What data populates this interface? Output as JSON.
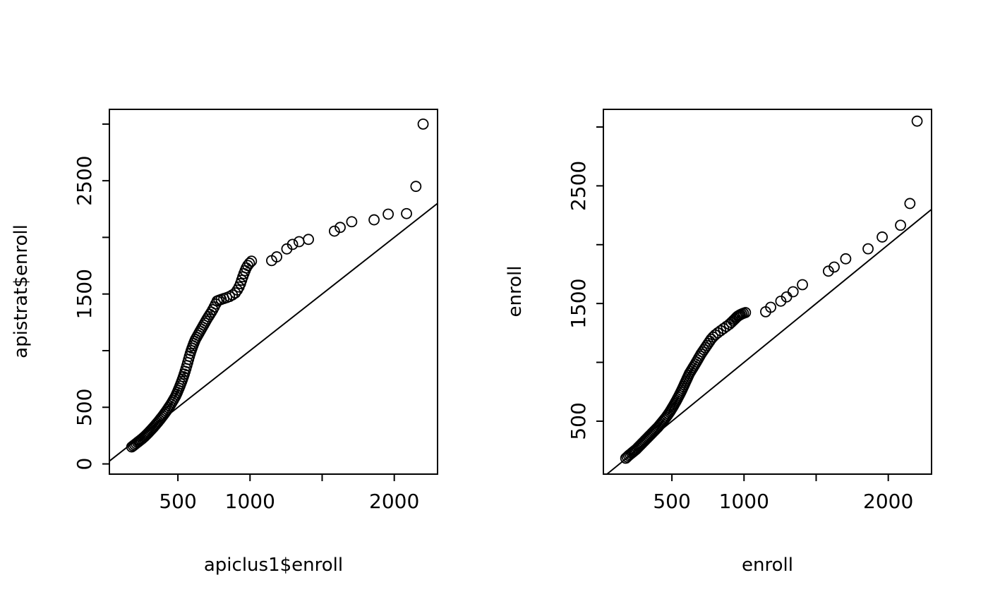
{
  "colors": {
    "foreground": "#000000",
    "background": "#ffffff"
  },
  "chart_data": [
    {
      "type": "scatter",
      "subtype": "qqplot",
      "title": "",
      "xlabel": "apiclus1$enroll",
      "ylabel": "apistrat$enroll",
      "xlim": [
        25,
        2300
      ],
      "ylim": [
        -90,
        3130
      ],
      "grid": false,
      "legend": "none",
      "marker": {
        "shape": "open-circle",
        "radius": 7
      },
      "reference_line": {
        "intercept": 0,
        "slope": 1
      },
      "xticks": [
        {
          "value": 500,
          "label": "500"
        },
        {
          "value": 1000,
          "label": "1000"
        },
        {
          "value": 1500,
          "label": ""
        },
        {
          "value": 2000,
          "label": "2000"
        }
      ],
      "yticks": [
        {
          "value": 0,
          "label": "0"
        },
        {
          "value": 500,
          "label": "500"
        },
        {
          "value": 1000,
          "label": ""
        },
        {
          "value": 1500,
          "label": "1500"
        },
        {
          "value": 2000,
          "label": ""
        },
        {
          "value": 2500,
          "label": "2500"
        },
        {
          "value": 3000,
          "label": ""
        }
      ],
      "points": [
        [
          180,
          150
        ],
        [
          190,
          160
        ],
        [
          200,
          170
        ],
        [
          210,
          180
        ],
        [
          220,
          190
        ],
        [
          228,
          198
        ],
        [
          236,
          206
        ],
        [
          244,
          214
        ],
        [
          252,
          222
        ],
        [
          260,
          231
        ],
        [
          268,
          240
        ],
        [
          276,
          250
        ],
        [
          284,
          260
        ],
        [
          292,
          270
        ],
        [
          300,
          281
        ],
        [
          308,
          292
        ],
        [
          316,
          303
        ],
        [
          324,
          314
        ],
        [
          332,
          325
        ],
        [
          340,
          337
        ],
        [
          348,
          349
        ],
        [
          356,
          361
        ],
        [
          364,
          373
        ],
        [
          372,
          386
        ],
        [
          380,
          399
        ],
        [
          388,
          412
        ],
        [
          396,
          425
        ],
        [
          404,
          439
        ],
        [
          412,
          453
        ],
        [
          420,
          467
        ],
        [
          428,
          482
        ],
        [
          436,
          497
        ],
        [
          444,
          512
        ],
        [
          452,
          528
        ],
        [
          460,
          545
        ],
        [
          468,
          562
        ],
        [
          476,
          580
        ],
        [
          484,
          598
        ],
        [
          490,
          615
        ],
        [
          496,
          632
        ],
        [
          502,
          650
        ],
        [
          508,
          668
        ],
        [
          514,
          687
        ],
        [
          520,
          707
        ],
        [
          526,
          727
        ],
        [
          532,
          748
        ],
        [
          538,
          770
        ],
        [
          544,
          793
        ],
        [
          550,
          817
        ],
        [
          556,
          842
        ],
        [
          562,
          868
        ],
        [
          568,
          895
        ],
        [
          574,
          923
        ],
        [
          580,
          950
        ],
        [
          586,
          976
        ],
        [
          592,
          1000
        ],
        [
          598,
          1022
        ],
        [
          604,
          1043
        ],
        [
          610,
          1063
        ],
        [
          616,
          1082
        ],
        [
          622,
          1100
        ],
        [
          630,
          1118
        ],
        [
          638,
          1136
        ],
        [
          646,
          1154
        ],
        [
          654,
          1172
        ],
        [
          662,
          1190
        ],
        [
          670,
          1208
        ],
        [
          678,
          1226
        ],
        [
          686,
          1244
        ],
        [
          694,
          1262
        ],
        [
          702,
          1280
        ],
        [
          712,
          1300
        ],
        [
          722,
          1320
        ],
        [
          732,
          1340
        ],
        [
          742,
          1362
        ],
        [
          752,
          1386
        ],
        [
          762,
          1412
        ],
        [
          772,
          1438
        ],
        [
          785,
          1445
        ],
        [
          800,
          1452
        ],
        [
          818,
          1460
        ],
        [
          838,
          1468
        ],
        [
          858,
          1478
        ],
        [
          878,
          1492
        ],
        [
          898,
          1510
        ],
        [
          912,
          1535
        ],
        [
          924,
          1562
        ],
        [
          934,
          1592
        ],
        [
          942,
          1622
        ],
        [
          950,
          1652
        ],
        [
          958,
          1680
        ],
        [
          966,
          1706
        ],
        [
          974,
          1730
        ],
        [
          984,
          1752
        ],
        [
          996,
          1772
        ],
        [
          1010,
          1790
        ],
        [
          1150,
          1795
        ],
        [
          1185,
          1828
        ],
        [
          1255,
          1898
        ],
        [
          1295,
          1938
        ],
        [
          1340,
          1962
        ],
        [
          1405,
          1982
        ],
        [
          1585,
          2055
        ],
        [
          1625,
          2088
        ],
        [
          1705,
          2138
        ],
        [
          1860,
          2155
        ],
        [
          1958,
          2205
        ],
        [
          2085,
          2210
        ],
        [
          2150,
          2450
        ],
        [
          2200,
          3000
        ]
      ]
    },
    {
      "type": "scatter",
      "subtype": "qqplot",
      "title": "",
      "xlabel": "enroll",
      "ylabel": "enroll",
      "xlim": [
        25,
        2300
      ],
      "ylim": [
        50,
        3150
      ],
      "grid": false,
      "legend": "none",
      "marker": {
        "shape": "open-circle",
        "radius": 7
      },
      "reference_line": {
        "intercept": 0,
        "slope": 1
      },
      "xticks": [
        {
          "value": 500,
          "label": "500"
        },
        {
          "value": 1000,
          "label": "1000"
        },
        {
          "value": 1500,
          "label": ""
        },
        {
          "value": 2000,
          "label": "2000"
        }
      ],
      "yticks": [
        {
          "value": 500,
          "label": "500"
        },
        {
          "value": 1000,
          "label": ""
        },
        {
          "value": 1500,
          "label": "1500"
        },
        {
          "value": 2000,
          "label": ""
        },
        {
          "value": 2500,
          "label": "2500"
        },
        {
          "value": 3000,
          "label": ""
        }
      ],
      "points": [
        [
          180,
          185
        ],
        [
          190,
          196
        ],
        [
          200,
          208
        ],
        [
          210,
          218
        ],
        [
          220,
          228
        ],
        [
          228,
          236
        ],
        [
          236,
          244
        ],
        [
          244,
          252
        ],
        [
          252,
          260
        ],
        [
          260,
          270
        ],
        [
          268,
          280
        ],
        [
          276,
          290
        ],
        [
          284,
          300
        ],
        [
          292,
          310
        ],
        [
          300,
          320
        ],
        [
          308,
          330
        ],
        [
          316,
          340
        ],
        [
          324,
          350
        ],
        [
          332,
          360
        ],
        [
          340,
          370
        ],
        [
          348,
          380
        ],
        [
          356,
          390
        ],
        [
          364,
          400
        ],
        [
          372,
          410
        ],
        [
          380,
          420
        ],
        [
          388,
          430
        ],
        [
          396,
          440
        ],
        [
          404,
          450
        ],
        [
          412,
          462
        ],
        [
          420,
          474
        ],
        [
          428,
          486
        ],
        [
          436,
          498
        ],
        [
          444,
          510
        ],
        [
          452,
          522
        ],
        [
          460,
          534
        ],
        [
          468,
          548
        ],
        [
          476,
          562
        ],
        [
          484,
          576
        ],
        [
          490,
          588
        ],
        [
          496,
          600
        ],
        [
          502,
          612
        ],
        [
          508,
          624
        ],
        [
          514,
          637
        ],
        [
          520,
          650
        ],
        [
          526,
          663
        ],
        [
          532,
          676
        ],
        [
          538,
          690
        ],
        [
          544,
          704
        ],
        [
          550,
          718
        ],
        [
          556,
          732
        ],
        [
          562,
          747
        ],
        [
          568,
          762
        ],
        [
          574,
          778
        ],
        [
          580,
          794
        ],
        [
          586,
          810
        ],
        [
          592,
          826
        ],
        [
          598,
          842
        ],
        [
          604,
          858
        ],
        [
          610,
          874
        ],
        [
          616,
          890
        ],
        [
          622,
          906
        ],
        [
          630,
          922
        ],
        [
          638,
          938
        ],
        [
          646,
          954
        ],
        [
          654,
          970
        ],
        [
          662,
          986
        ],
        [
          670,
          1003
        ],
        [
          678,
          1020
        ],
        [
          686,
          1037
        ],
        [
          694,
          1054
        ],
        [
          702,
          1071
        ],
        [
          712,
          1089
        ],
        [
          722,
          1107
        ],
        [
          732,
          1125
        ],
        [
          742,
          1143
        ],
        [
          752,
          1161
        ],
        [
          762,
          1179
        ],
        [
          772,
          1197
        ],
        [
          785,
          1215
        ],
        [
          800,
          1233
        ],
        [
          818,
          1251
        ],
        [
          838,
          1269
        ],
        [
          858,
          1287
        ],
        [
          878,
          1305
        ],
        [
          898,
          1323
        ],
        [
          912,
          1339
        ],
        [
          924,
          1353
        ],
        [
          934,
          1365
        ],
        [
          942,
          1375
        ],
        [
          950,
          1385
        ],
        [
          958,
          1393
        ],
        [
          966,
          1399
        ],
        [
          974,
          1405
        ],
        [
          984,
          1411
        ],
        [
          996,
          1417
        ],
        [
          1010,
          1423
        ],
        [
          1150,
          1430
        ],
        [
          1185,
          1468
        ],
        [
          1255,
          1520
        ],
        [
          1295,
          1556
        ],
        [
          1340,
          1600
        ],
        [
          1405,
          1660
        ],
        [
          1585,
          1775
        ],
        [
          1625,
          1810
        ],
        [
          1705,
          1880
        ],
        [
          1860,
          1965
        ],
        [
          1958,
          2065
        ],
        [
          2085,
          2165
        ],
        [
          2150,
          2350
        ],
        [
          2200,
          3050
        ]
      ]
    }
  ]
}
